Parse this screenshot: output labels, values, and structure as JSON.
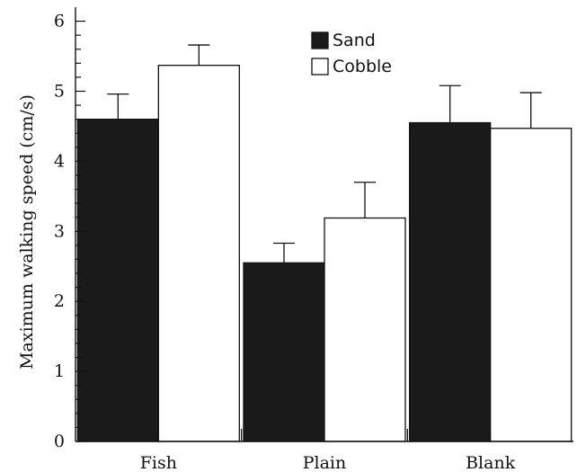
{
  "chart_data": {
    "type": "bar",
    "categories": [
      "Fish",
      "Plain",
      "Blank"
    ],
    "series": [
      {
        "name": "Sand",
        "color": "#1a1a1a",
        "values": [
          4.6,
          2.55,
          4.55
        ],
        "errors": [
          0.36,
          0.28,
          0.53
        ]
      },
      {
        "name": "Cobble",
        "color": "#ffffff",
        "values": [
          5.37,
          3.19,
          4.47
        ],
        "errors": [
          0.29,
          0.51,
          0.51
        ]
      }
    ],
    "ylabel": "Maximum walking speed (cm/s)",
    "xlabel": "",
    "ylim": [
      0,
      6.2
    ],
    "yticks": [
      "0",
      "1",
      "2",
      "3",
      "4",
      "5",
      "6"
    ],
    "grid": false,
    "legend_position": "top-center"
  }
}
